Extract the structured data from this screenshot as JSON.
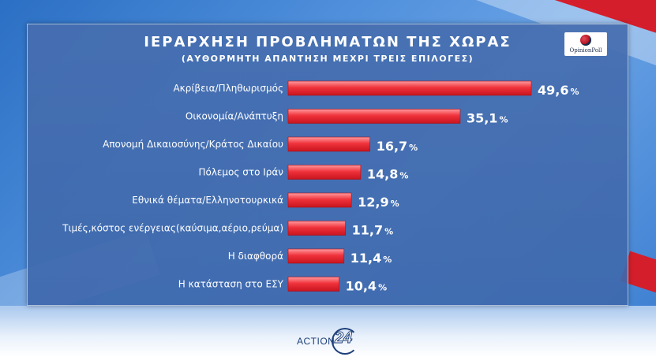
{
  "title": "ΙΕΡΑΡΧΗΣΗ ΠΡΟΒΛΗΜΑΤΩΝ ΤΗΣ ΧΩΡΑΣ",
  "subtitle": "(ΑΥΘΟΡΜΗΤΗ ΑΠΑΝΤΗΣΗ ΜΕΧΡΙ ΤΡΕΙΣ ΕΠΙΛΟΓΕΣ)",
  "logo_text": "OpinionPoll",
  "brand": {
    "text": "ACTION",
    "number": "24"
  },
  "colors": {
    "bar_main": "#e8212c",
    "bar_light": "#ff8a8f",
    "panel": "#466ea9"
  },
  "chart_data": {
    "type": "bar",
    "orientation": "horizontal",
    "categories": [
      "Ακρίβεια/Πληθωρισμός",
      "Οικονομία/Ανάπτυξη",
      "Απονομή Δικαιοσύνης/Κράτος Δικαίου",
      "Πόλεμος στο Ιράν",
      "Εθνικά θέματα/Ελληνοτουρκικά",
      "Τιμές,κόστος ενέργειας(καύσιμα,αέριο,ρεύμα)",
      "Η διαφθορά",
      "Η κατάσταση στο ΕΣΥ"
    ],
    "values": [
      49.6,
      35.1,
      16.7,
      14.8,
      12.9,
      11.7,
      11.4,
      10.4
    ],
    "value_labels": [
      "49,6",
      "35,1",
      "16,7",
      "14,8",
      "12,9",
      "11,7",
      "11,4",
      "10,4"
    ],
    "unit": "%",
    "title": "ΙΕΡΑΡΧΗΣΗ ΠΡΟΒΛΗΜΑΤΩΝ ΤΗΣ ΧΩΡΑΣ",
    "subtitle": "(ΑΥΘΟΡΜΗΤΗ ΑΠΑΝΤΗΣΗ ΜΕΧΡΙ ΤΡΕΙΣ ΕΠΙΛΟΓΕΣ)",
    "xlabel": "",
    "ylabel": "",
    "xlim": [
      0,
      49.6
    ],
    "grid": false,
    "legend": "none"
  }
}
